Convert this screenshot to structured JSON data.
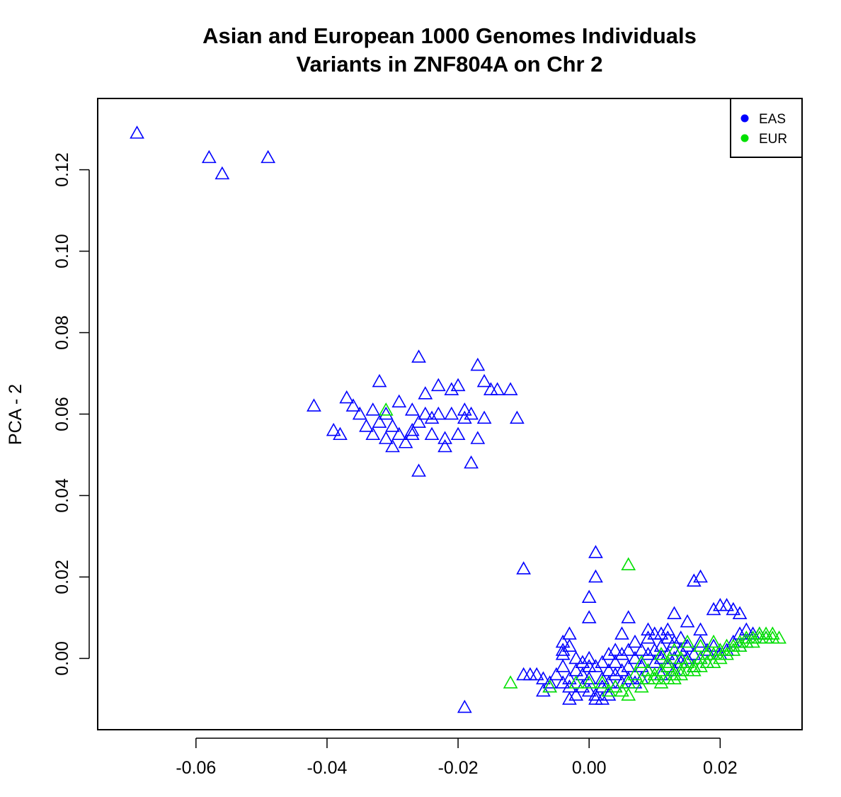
{
  "chart_data": {
    "type": "scatter",
    "title": [
      "Asian and European 1000 Genomes Individuals",
      "Variants in ZNF804A on Chr 2"
    ],
    "xlabel": "",
    "ylabel": "PCA - 2",
    "xlim": [
      -0.075,
      0.0325
    ],
    "ylim": [
      -0.0175,
      0.1375
    ],
    "x_ticks": [
      "-0.06",
      "-0.04",
      "-0.02",
      "0.00",
      "0.02"
    ],
    "y_ticks": [
      "0.00",
      "0.02",
      "0.04",
      "0.06",
      "0.08",
      "0.10",
      "0.12"
    ],
    "grid": false,
    "marker": "open-triangle",
    "legend_position": "top-right",
    "series": [
      {
        "name": "EAS",
        "color": "#0000FF",
        "points": [
          [
            -0.069,
            0.129
          ],
          [
            -0.058,
            0.123
          ],
          [
            -0.056,
            0.119
          ],
          [
            -0.049,
            0.123
          ],
          [
            -0.042,
            0.062
          ],
          [
            -0.039,
            0.056
          ],
          [
            -0.038,
            0.055
          ],
          [
            -0.037,
            0.064
          ],
          [
            -0.036,
            0.062
          ],
          [
            -0.035,
            0.06
          ],
          [
            -0.034,
            0.057
          ],
          [
            -0.033,
            0.061
          ],
          [
            -0.032,
            0.068
          ],
          [
            -0.032,
            0.058
          ],
          [
            -0.031,
            0.06
          ],
          [
            -0.031,
            0.054
          ],
          [
            -0.03,
            0.057
          ],
          [
            -0.03,
            0.052
          ],
          [
            -0.029,
            0.063
          ],
          [
            -0.029,
            0.055
          ],
          [
            -0.028,
            0.053
          ],
          [
            -0.027,
            0.061
          ],
          [
            -0.027,
            0.056
          ],
          [
            -0.026,
            0.074
          ],
          [
            -0.026,
            0.058
          ],
          [
            -0.025,
            0.065
          ],
          [
            -0.025,
            0.06
          ],
          [
            -0.024,
            0.059
          ],
          [
            -0.024,
            0.055
          ],
          [
            -0.023,
            0.067
          ],
          [
            -0.023,
            0.06
          ],
          [
            -0.022,
            0.054
          ],
          [
            -0.022,
            0.052
          ],
          [
            -0.021,
            0.066
          ],
          [
            -0.021,
            0.06
          ],
          [
            -0.02,
            0.067
          ],
          [
            -0.02,
            0.055
          ],
          [
            -0.019,
            0.061
          ],
          [
            -0.019,
            0.059
          ],
          [
            -0.018,
            0.06
          ],
          [
            -0.018,
            0.048
          ],
          [
            -0.017,
            0.072
          ],
          [
            -0.017,
            0.054
          ],
          [
            -0.016,
            0.068
          ],
          [
            -0.016,
            0.059
          ],
          [
            -0.015,
            0.066
          ],
          [
            -0.014,
            0.066
          ],
          [
            -0.012,
            0.066
          ],
          [
            -0.011,
            0.059
          ],
          [
            -0.026,
            0.046
          ],
          [
            -0.033,
            0.055
          ],
          [
            -0.027,
            0.055
          ],
          [
            -0.01,
            0.022
          ],
          [
            -0.019,
            -0.012
          ],
          [
            0.001,
            0.026
          ],
          [
            0.001,
            0.02
          ],
          [
            0.0,
            0.015
          ],
          [
            0.0,
            0.01
          ],
          [
            0.006,
            0.01
          ],
          [
            0.005,
            0.006
          ],
          [
            0.013,
            0.011
          ],
          [
            0.015,
            0.009
          ],
          [
            0.017,
            0.007
          ],
          [
            0.016,
            0.019
          ],
          [
            0.017,
            0.02
          ],
          [
            0.019,
            0.012
          ],
          [
            0.02,
            0.013
          ],
          [
            0.021,
            0.013
          ],
          [
            0.022,
            0.012
          ],
          [
            0.023,
            0.011
          ],
          [
            -0.003,
            0.006
          ],
          [
            -0.004,
            0.004
          ],
          [
            -0.003,
            0.003
          ],
          [
            -0.004,
            0.001
          ],
          [
            -0.004,
            -0.002
          ],
          [
            -0.01,
            -0.004
          ],
          [
            -0.009,
            -0.004
          ],
          [
            -0.008,
            -0.004
          ],
          [
            -0.007,
            -0.005
          ],
          [
            -0.006,
            -0.006
          ],
          [
            -0.006,
            -0.007
          ],
          [
            -0.007,
            -0.008
          ],
          [
            -0.005,
            -0.004
          ],
          [
            -0.004,
            -0.006
          ],
          [
            -0.003,
            -0.005
          ],
          [
            -0.002,
            -0.003
          ],
          [
            -0.003,
            -0.007
          ],
          [
            -0.002,
            -0.009
          ],
          [
            -0.003,
            -0.01
          ],
          [
            -0.001,
            -0.004
          ],
          [
            -0.001,
            -0.007
          ],
          [
            0.0,
            -0.002
          ],
          [
            0.0,
            -0.005
          ],
          [
            0.0,
            -0.008
          ],
          [
            0.001,
            -0.009
          ],
          [
            0.001,
            -0.01
          ],
          [
            0.002,
            -0.01
          ],
          [
            0.002,
            -0.007
          ],
          [
            0.002,
            -0.005
          ],
          [
            0.003,
            -0.003
          ],
          [
            0.003,
            -0.006
          ],
          [
            0.003,
            -0.009
          ],
          [
            0.004,
            -0.001
          ],
          [
            0.004,
            -0.004
          ],
          [
            0.004,
            -0.007
          ],
          [
            0.005,
            0.001
          ],
          [
            0.005,
            -0.003
          ],
          [
            0.005,
            -0.006
          ],
          [
            0.006,
            -0.002
          ],
          [
            0.006,
            0.002
          ],
          [
            0.006,
            -0.005
          ],
          [
            0.007,
            0.0
          ],
          [
            0.007,
            0.004
          ],
          [
            0.007,
            -0.006
          ],
          [
            0.008,
            0.002
          ],
          [
            0.008,
            -0.002
          ],
          [
            0.008,
            -0.005
          ],
          [
            0.009,
            0.005
          ],
          [
            0.009,
            0.001
          ],
          [
            0.009,
            -0.003
          ],
          [
            0.01,
            0.006
          ],
          [
            0.01,
            0.002
          ],
          [
            0.01,
            -0.001
          ],
          [
            0.011,
            0.003
          ],
          [
            0.011,
            0.0
          ],
          [
            0.011,
            -0.004
          ],
          [
            0.012,
            0.005
          ],
          [
            0.012,
            0.001
          ],
          [
            0.012,
            -0.002
          ],
          [
            0.013,
            0.004
          ],
          [
            0.013,
            0.0
          ],
          [
            0.013,
            -0.003
          ],
          [
            0.014,
            0.002
          ],
          [
            0.014,
            -0.001
          ],
          [
            0.015,
            0.003
          ],
          [
            0.015,
            0.0
          ],
          [
            0.016,
            0.001
          ],
          [
            0.016,
            -0.002
          ],
          [
            0.017,
            0.004
          ],
          [
            0.017,
            0.0
          ],
          [
            0.018,
            0.002
          ],
          [
            0.018,
            -0.001
          ],
          [
            0.019,
            0.003
          ],
          [
            0.02,
            0.001
          ],
          [
            0.021,
            0.002
          ],
          [
            0.023,
            0.006
          ],
          [
            0.024,
            0.007
          ],
          [
            0.024,
            0.004
          ],
          [
            0.025,
            0.006
          ],
          [
            0.025,
            0.005
          ],
          [
            0.026,
            0.006
          ],
          [
            0.027,
            0.005
          ],
          [
            0.022,
            0.004
          ],
          [
            0.023,
            0.003
          ],
          [
            -0.004,
            0.002
          ],
          [
            -0.002,
            0.0
          ],
          [
            -0.001,
            -0.001
          ],
          [
            0.0,
            0.0
          ],
          [
            0.001,
            -0.002
          ],
          [
            0.002,
            -0.001
          ],
          [
            0.003,
            0.001
          ],
          [
            0.004,
            0.002
          ],
          [
            0.009,
            0.007
          ],
          [
            0.011,
            0.006
          ],
          [
            0.012,
            0.007
          ],
          [
            0.014,
            0.005
          ]
        ]
      },
      {
        "name": "EUR",
        "color": "#00E000",
        "points": [
          [
            -0.031,
            0.061
          ],
          [
            0.006,
            0.023
          ],
          [
            -0.012,
            -0.006
          ],
          [
            0.003,
            -0.008
          ],
          [
            0.005,
            -0.008
          ],
          [
            0.006,
            -0.009
          ],
          [
            0.008,
            -0.007
          ],
          [
            0.009,
            -0.005
          ],
          [
            0.01,
            -0.004
          ],
          [
            0.011,
            -0.003
          ],
          [
            0.012,
            -0.002
          ],
          [
            0.013,
            -0.004
          ],
          [
            0.014,
            -0.003
          ],
          [
            0.015,
            -0.001
          ],
          [
            0.016,
            -0.002
          ],
          [
            0.017,
            0.0
          ],
          [
            0.018,
            0.001
          ],
          [
            0.019,
            0.001
          ],
          [
            0.02,
            0.002
          ],
          [
            0.021,
            0.003
          ],
          [
            0.022,
            0.003
          ],
          [
            0.023,
            0.004
          ],
          [
            0.024,
            0.005
          ],
          [
            0.025,
            0.005
          ],
          [
            0.026,
            0.006
          ],
          [
            0.027,
            0.006
          ],
          [
            0.028,
            0.005
          ],
          [
            0.029,
            0.005
          ],
          [
            0.028,
            0.006
          ],
          [
            0.027,
            0.005
          ],
          [
            0.026,
            0.005
          ],
          [
            0.025,
            0.004
          ],
          [
            0.024,
            0.004
          ],
          [
            0.023,
            0.003
          ],
          [
            0.022,
            0.002
          ],
          [
            0.021,
            0.001
          ],
          [
            0.02,
            0.0
          ],
          [
            0.019,
            -0.001
          ],
          [
            0.018,
            -0.001
          ],
          [
            0.017,
            -0.002
          ],
          [
            0.016,
            -0.003
          ],
          [
            0.015,
            -0.003
          ],
          [
            0.014,
            -0.004
          ],
          [
            0.013,
            -0.005
          ],
          [
            0.012,
            -0.005
          ],
          [
            0.011,
            -0.006
          ],
          [
            0.01,
            -0.005
          ],
          [
            0.009,
            -0.003
          ],
          [
            0.008,
            -0.001
          ],
          [
            0.007,
            -0.004
          ],
          [
            0.006,
            -0.006
          ],
          [
            0.004,
            -0.007
          ],
          [
            0.002,
            -0.006
          ],
          [
            0.0,
            -0.006
          ],
          [
            -0.002,
            -0.006
          ],
          [
            -0.006,
            -0.007
          ],
          [
            0.011,
            0.001
          ],
          [
            0.013,
            0.002
          ],
          [
            0.015,
            0.004
          ],
          [
            0.017,
            0.003
          ],
          [
            0.019,
            0.004
          ],
          [
            0.012,
            -0.001
          ],
          [
            0.014,
            0.0
          ]
        ]
      }
    ]
  }
}
